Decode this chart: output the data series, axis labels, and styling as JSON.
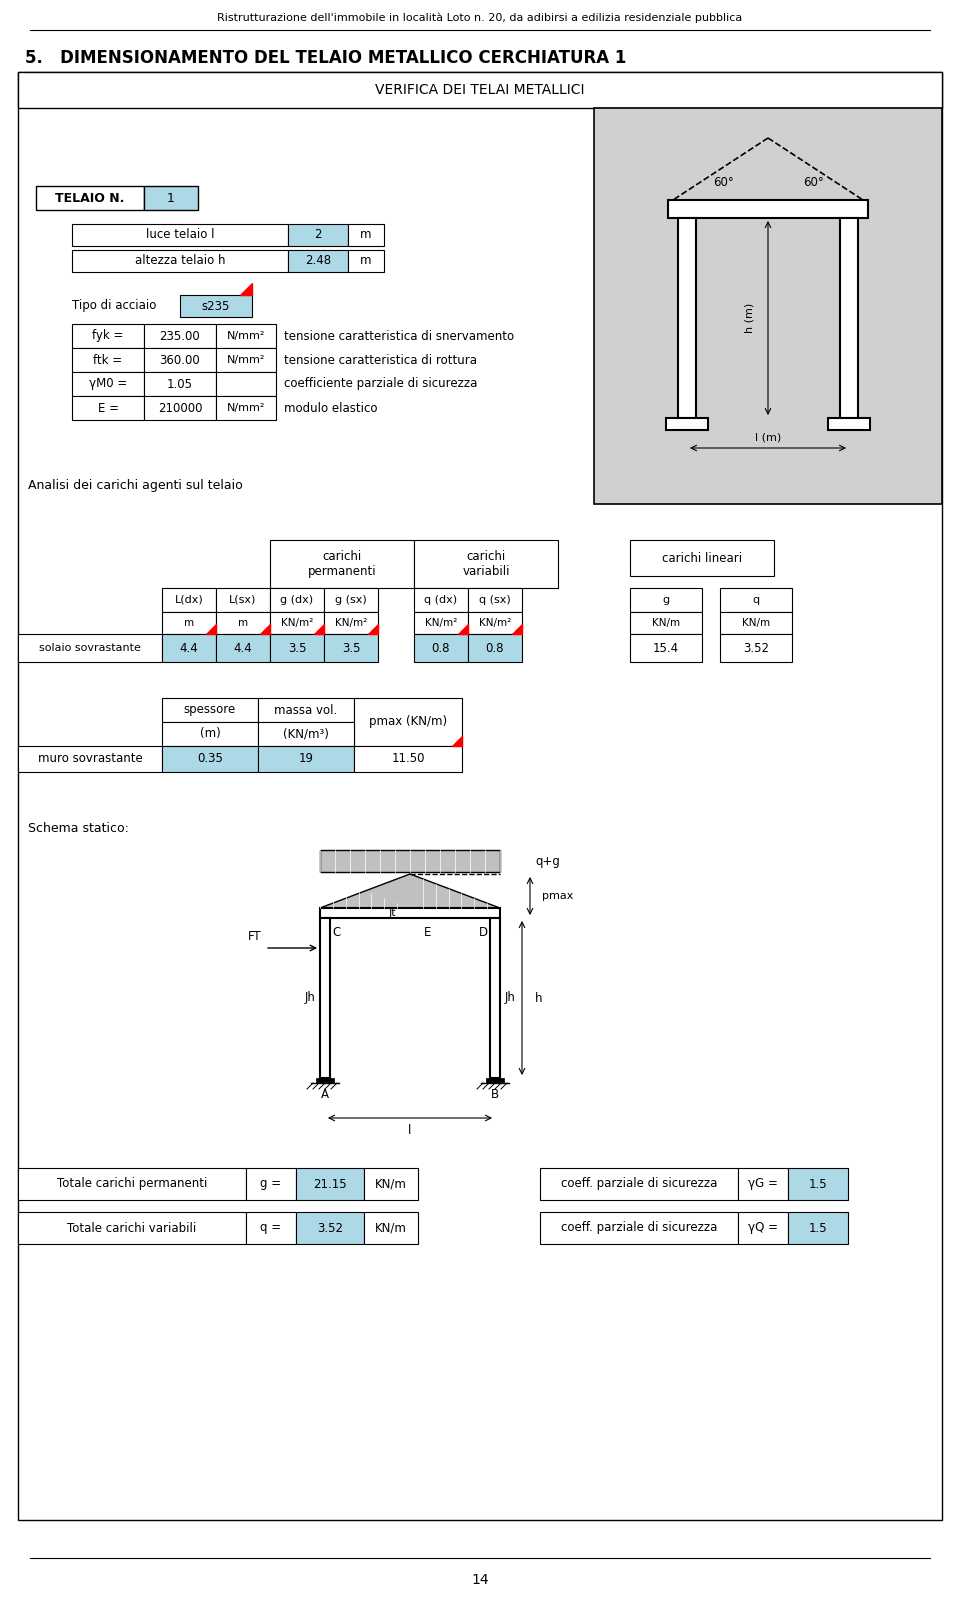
{
  "page_title": "Ristrutturazione dell'immobile in località Loto n. 20, da adibirsi a edilizia residenziale pubblica",
  "section_title": "5.   DIMENSIONAMENTO DEL TELAIO METALLICO CERCHIATURA 1",
  "verifica_header": "VERIFICA DEI TELAI METALLICI",
  "telaio_label": "TELAIO N.",
  "telaio_num": "1",
  "luce_label": "luce telaio l",
  "luce_val": "2",
  "luce_unit": "m",
  "altezza_label": "altezza telaio h",
  "altezza_val": "2.48",
  "altezza_unit": "m",
  "tipo_label": "Tipo di acciaio",
  "tipo_val": "s235",
  "fyk_label": "fyk =",
  "fyk_val": "235.00",
  "fyk_unit": "N/mm²",
  "fyk_desc": "tensione caratteristica di snervamento",
  "ftk_label": "ftk =",
  "ftk_val": "360.00",
  "ftk_unit": "N/mm²",
  "ftk_desc": "tensione caratteristica di rottura",
  "gamma_label": "γM0 =",
  "gamma_val": "1.05",
  "gamma_desc": "coefficiente parziale di sicurezza",
  "E_label": "E =",
  "E_val": "210000",
  "E_unit": "N/mm²",
  "E_desc": "modulo elastico",
  "analisi_label": "Analisi dei carichi agenti sul telaio",
  "row_solaio_label": "solaio sovrastante",
  "row_solaio_vals": [
    "4.4",
    "4.4",
    "3.5",
    "3.5",
    "0.8",
    "0.8",
    "15.4",
    "3.52"
  ],
  "spessore_label": "spessore",
  "spessore_unit": "(m)",
  "massa_label": "massa vol.",
  "massa_unit": "(KN/m³)",
  "pmax_label": "pmax (KN/m)",
  "muro_label": "muro sovrastante",
  "muro_spessore": "0.35",
  "muro_massa": "19",
  "muro_pmax": "11.50",
  "schema_label": "Schema statico:",
  "ft_label": "FT",
  "c_label": "C",
  "jt_label": "Jt",
  "e_label": "E",
  "d_label": "D",
  "jh_label1": "Jh",
  "jh_label2": "Jh",
  "h_label": "h",
  "a_label": "A",
  "b_label": "B",
  "l_label": "l",
  "qg_label": "q+g",
  "pmax_arrow_label": "pmax",
  "totale_perm_label": "Totale carichi permanenti",
  "g_eq": "g =",
  "g_val": "21.15",
  "g_unit": "KN/m",
  "coeff_perm_label": "coeff. parziale di sicurezza",
  "gamma_G_label": "γG =",
  "gamma_G_val": "1.5",
  "totale_var_label": "Totale carichi variabili",
  "q_eq": "q =",
  "q_val": "3.52",
  "q_unit": "KN/m",
  "coeff_var_label": "coeff. parziale di sicurezza",
  "gamma_Q_label": "γQ =",
  "gamma_Q_val": "1.5",
  "page_num": "14",
  "bg_color": "#ffffff",
  "grid_color": "#c8d8e8",
  "header_bg": "#d0d0d0",
  "cell_blue": "#add8e6",
  "hatching_color": "#c0c0c0"
}
